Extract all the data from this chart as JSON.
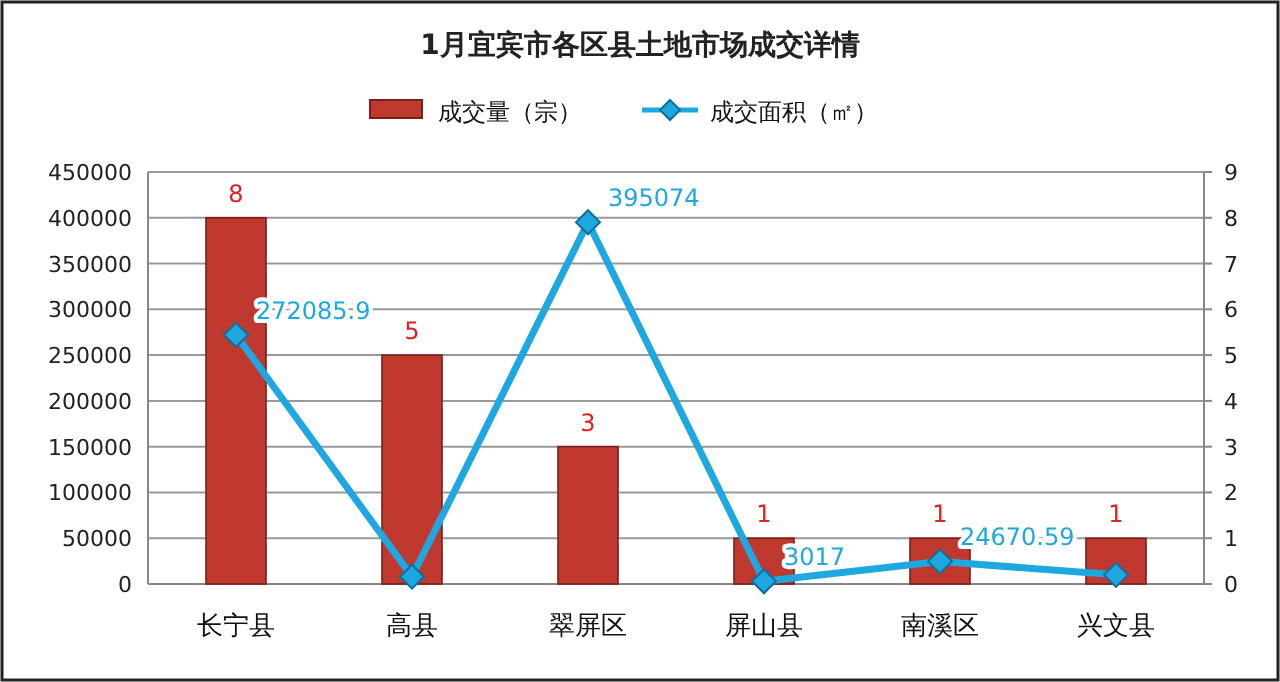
{
  "chart_data": {
    "type": "bar",
    "title": "1月宜宾市各区县土地市场成交详情",
    "categories": [
      "长宁县",
      "高县",
      "翠屏区",
      "屏山县",
      "南溪区",
      "兴文县"
    ],
    "series": [
      {
        "name": "成交量（宗）",
        "axis": "y2",
        "color": "#c0392f",
        "values": [
          8,
          5,
          3,
          1,
          1,
          1
        ],
        "value_labels": [
          "8",
          "5",
          "3",
          "1",
          "1",
          "1"
        ]
      },
      {
        "name": "成交面积（㎡）",
        "type": "line",
        "color": "#1ea7e1",
        "marker": "diamond",
        "values": [
          272085.9,
          8000,
          395074,
          3017,
          24670.59,
          10000
        ],
        "value_labels": [
          "272085.9",
          null,
          "395074",
          "3017",
          "24670.59",
          null
        ]
      }
    ],
    "ylim": [
      0,
      450000
    ],
    "yticks": [
      0,
      50000,
      100000,
      150000,
      200000,
      250000,
      300000,
      350000,
      400000,
      450000
    ],
    "y2lim": [
      0,
      9
    ],
    "y2ticks": [
      0,
      1,
      2,
      3,
      4,
      5,
      6,
      7,
      8,
      9
    ],
    "grid": "y",
    "legend": "top"
  }
}
